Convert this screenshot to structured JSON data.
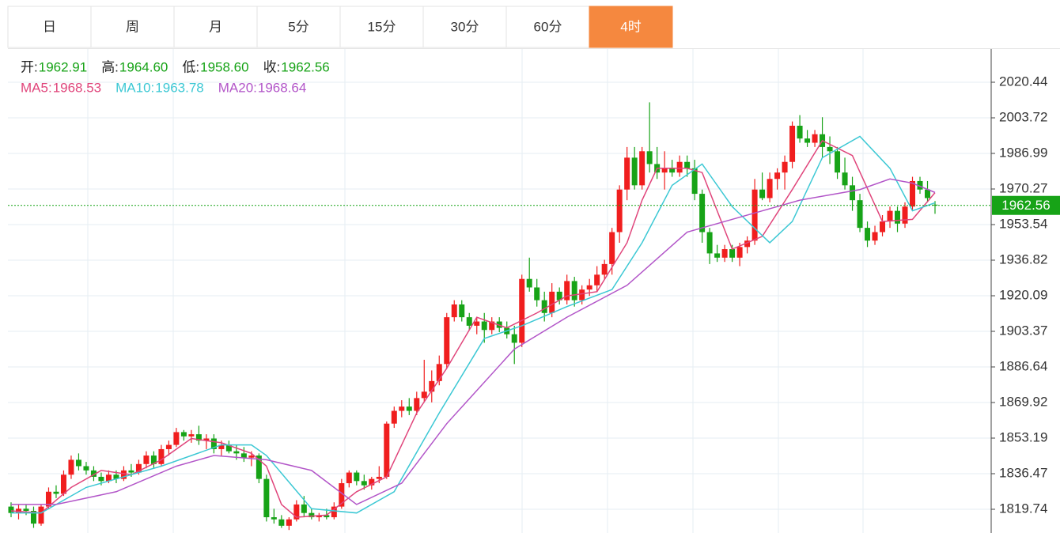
{
  "tabs": {
    "items": [
      "日",
      "周",
      "月",
      "5分",
      "15分",
      "30分",
      "60分",
      "4时"
    ],
    "active": 7
  },
  "chart_data": {
    "type": "candlestick",
    "header": {
      "ohlc": [
        {
          "label": "开:",
          "value": "1962.91"
        },
        {
          "label": "高:",
          "value": "1964.60"
        },
        {
          "label": "低:",
          "value": "1958.60"
        },
        {
          "label": "收:",
          "value": "1962.56"
        }
      ],
      "ma": [
        {
          "label": "MA5:",
          "value": "1968.53"
        },
        {
          "label": "MA10:",
          "value": "1963.78"
        },
        {
          "label": "MA20:",
          "value": "1968.64"
        }
      ]
    },
    "up_color": "#f01e1e",
    "down_color": "#17a317",
    "candles": [
      [
        1821,
        1823,
        1816,
        1818
      ],
      [
        1818,
        1822,
        1815,
        1820
      ],
      [
        1820,
        1822,
        1817,
        1819
      ],
      [
        1819,
        1821,
        1811,
        1813
      ],
      [
        1813,
        1822,
        1812,
        1821
      ],
      [
        1821,
        1830,
        1820,
        1828
      ],
      [
        1828,
        1831,
        1825,
        1827
      ],
      [
        1827,
        1838,
        1826,
        1836
      ],
      [
        1836,
        1845,
        1834,
        1843
      ],
      [
        1843,
        1846,
        1838,
        1840
      ],
      [
        1840,
        1842,
        1836,
        1838
      ],
      [
        1838,
        1840,
        1833,
        1835
      ],
      [
        1835,
        1837,
        1831,
        1833
      ],
      [
        1833,
        1838,
        1832,
        1836
      ],
      [
        1836,
        1838,
        1832,
        1834
      ],
      [
        1834,
        1840,
        1833,
        1838
      ],
      [
        1838,
        1841,
        1835,
        1837
      ],
      [
        1837,
        1843,
        1836,
        1841
      ],
      [
        1841,
        1847,
        1839,
        1845
      ],
      [
        1845,
        1847,
        1839,
        1841
      ],
      [
        1841,
        1850,
        1840,
        1848
      ],
      [
        1848,
        1852,
        1845,
        1850
      ],
      [
        1850,
        1858,
        1849,
        1856
      ],
      [
        1856,
        1857,
        1852,
        1854
      ],
      [
        1854,
        1857,
        1851,
        1855
      ],
      [
        1855,
        1859,
        1850,
        1852
      ],
      [
        1852,
        1855,
        1848,
        1853
      ],
      [
        1853,
        1855,
        1846,
        1848
      ],
      [
        1848,
        1852,
        1845,
        1850
      ],
      [
        1850,
        1852,
        1846,
        1847
      ],
      [
        1847,
        1850,
        1843,
        1846
      ],
      [
        1846,
        1849,
        1842,
        1844
      ],
      [
        1844,
        1847,
        1840,
        1845
      ],
      [
        1845,
        1846,
        1832,
        1834
      ],
      [
        1834,
        1836,
        1814,
        1816
      ],
      [
        1816,
        1820,
        1813,
        1815
      ],
      [
        1815,
        1817,
        1811,
        1812
      ],
      [
        1812,
        1816,
        1810,
        1815
      ],
      [
        1815,
        1824,
        1814,
        1822
      ],
      [
        1822,
        1826,
        1816,
        1818
      ],
      [
        1818,
        1820,
        1815,
        1816
      ],
      [
        1816,
        1818,
        1814,
        1817
      ],
      [
        1817,
        1820,
        1815,
        1816
      ],
      [
        1816,
        1823,
        1815,
        1821
      ],
      [
        1821,
        1834,
        1820,
        1832
      ],
      [
        1832,
        1838,
        1830,
        1837
      ],
      [
        1837,
        1838,
        1831,
        1833
      ],
      [
        1833,
        1836,
        1829,
        1831
      ],
      [
        1831,
        1835,
        1829,
        1834
      ],
      [
        1834,
        1840,
        1832,
        1835
      ],
      [
        1835,
        1861,
        1834,
        1860
      ],
      [
        1860,
        1868,
        1858,
        1866
      ],
      [
        1866,
        1871,
        1863,
        1868
      ],
      [
        1868,
        1872,
        1864,
        1866
      ],
      [
        1866,
        1875,
        1864,
        1872
      ],
      [
        1872,
        1890,
        1870,
        1875
      ],
      [
        1875,
        1885,
        1870,
        1880
      ],
      [
        1880,
        1892,
        1878,
        1888
      ],
      [
        1888,
        1912,
        1886,
        1910
      ],
      [
        1910,
        1918,
        1908,
        1916
      ],
      [
        1916,
        1918,
        1908,
        1910
      ],
      [
        1910,
        1912,
        1904,
        1906
      ],
      [
        1906,
        1910,
        1902,
        1908
      ],
      [
        1908,
        1912,
        1898,
        1904
      ],
      [
        1904,
        1910,
        1902,
        1908
      ],
      [
        1908,
        1910,
        1903,
        1905
      ],
      [
        1905,
        1908,
        1900,
        1902
      ],
      [
        1902,
        1906,
        1888,
        1898
      ],
      [
        1898,
        1930,
        1896,
        1928
      ],
      [
        1928,
        1938,
        1922,
        1924
      ],
      [
        1924,
        1928,
        1915,
        1918
      ],
      [
        1918,
        1922,
        1908,
        1912
      ],
      [
        1912,
        1926,
        1910,
        1922
      ],
      [
        1922,
        1924,
        1916,
        1918
      ],
      [
        1918,
        1930,
        1916,
        1927
      ],
      [
        1927,
        1929,
        1915,
        1918
      ],
      [
        1918,
        1925,
        1916,
        1923
      ],
      [
        1923,
        1928,
        1920,
        1925
      ],
      [
        1925,
        1934,
        1922,
        1930
      ],
      [
        1930,
        1937,
        1928,
        1935
      ],
      [
        1935,
        1952,
        1930,
        1950
      ],
      [
        1950,
        1972,
        1945,
        1970
      ],
      [
        1970,
        1990,
        1965,
        1985
      ],
      [
        1985,
        1990,
        1970,
        1972
      ],
      [
        1972,
        1990,
        1970,
        1988
      ],
      [
        1988,
        2011,
        1978,
        1982
      ],
      [
        1982,
        1990,
        1975,
        1978
      ],
      [
        1978,
        1988,
        1970,
        1980
      ],
      [
        1980,
        1984,
        1976,
        1978
      ],
      [
        1978,
        1986,
        1976,
        1983
      ],
      [
        1983,
        1986,
        1976,
        1980
      ],
      [
        1980,
        1984,
        1965,
        1968
      ],
      [
        1968,
        1970,
        1945,
        1950
      ],
      [
        1950,
        1952,
        1935,
        1940
      ],
      [
        1940,
        1944,
        1936,
        1938
      ],
      [
        1938,
        1944,
        1936,
        1942
      ],
      [
        1942,
        1944,
        1936,
        1938
      ],
      [
        1938,
        1945,
        1934,
        1943
      ],
      [
        1943,
        1948,
        1940,
        1946
      ],
      [
        1946,
        1975,
        1944,
        1970
      ],
      [
        1970,
        1978,
        1965,
        1966
      ],
      [
        1966,
        1978,
        1964,
        1975
      ],
      [
        1975,
        1980,
        1970,
        1978
      ],
      [
        1978,
        1986,
        1970,
        1983
      ],
      [
        1983,
        2002,
        1980,
        2000
      ],
      [
        2000,
        2005,
        1992,
        1994
      ],
      [
        1994,
        1998,
        1990,
        1992
      ],
      [
        1992,
        1998,
        1990,
        1996
      ],
      [
        1996,
        2004,
        1985,
        1990
      ],
      [
        1990,
        1995,
        1982,
        1988
      ],
      [
        1988,
        1990,
        1975,
        1978
      ],
      [
        1978,
        1985,
        1970,
        1972
      ],
      [
        1972,
        1976,
        1960,
        1965
      ],
      [
        1965,
        1968,
        1950,
        1952
      ],
      [
        1952,
        1955,
        1943,
        1946
      ],
      [
        1946,
        1953,
        1944,
        1950
      ],
      [
        1950,
        1958,
        1948,
        1955
      ],
      [
        1955,
        1962,
        1952,
        1960
      ],
      [
        1960,
        1962,
        1950,
        1954
      ],
      [
        1954,
        1964,
        1952,
        1962
      ],
      [
        1962,
        1976,
        1960,
        1974
      ],
      [
        1974,
        1976,
        1968,
        1970
      ],
      [
        1970,
        1974,
        1964,
        1966
      ],
      [
        1962.91,
        1964.6,
        1958.6,
        1962.56
      ]
    ],
    "series": [
      {
        "name": "MA5",
        "color": "#e0457b",
        "x": [
          0,
          4,
          8,
          12,
          16,
          20,
          24,
          28,
          32,
          34,
          36,
          38,
          42,
          46,
          50,
          54,
          58,
          62,
          66,
          70,
          74,
          78,
          82,
          84,
          86,
          90,
          92,
          94,
          96,
          100,
          104,
          108,
          112,
          116,
          120,
          123
        ],
        "values": [
          1819,
          1818,
          1830,
          1838,
          1836,
          1843,
          1853,
          1851,
          1846,
          1840,
          1822,
          1816,
          1817,
          1828,
          1835,
          1865,
          1886,
          1910,
          1905,
          1912,
          1920,
          1922,
          1945,
          1965,
          1980,
          1980,
          1978,
          1960,
          1942,
          1948,
          1970,
          1993,
          1986,
          1955,
          1956,
          1968.53
        ]
      },
      {
        "name": "MA10",
        "color": "#3cc8d4",
        "x": [
          0,
          4,
          10,
          20,
          28,
          32,
          34,
          40,
          46,
          51,
          57,
          63,
          68,
          74,
          80,
          84,
          88,
          92,
          96,
          101,
          104,
          108,
          113,
          117,
          120,
          123
        ],
        "values": [
          1818,
          1818,
          1830,
          1840,
          1850,
          1850,
          1845,
          1820,
          1818,
          1828,
          1865,
          1900,
          1906,
          1915,
          1923,
          1945,
          1972,
          1982,
          1962,
          1945,
          1955,
          1985,
          1995,
          1980,
          1960,
          1963.78
        ]
      },
      {
        "name": "MA20",
        "color": "#b255c8",
        "x": [
          0,
          6,
          14,
          22,
          27,
          34,
          40,
          46,
          52,
          58,
          67,
          74,
          82,
          90,
          97,
          105,
          113,
          117,
          120,
          123
        ],
        "values": [
          1822,
          1822,
          1828,
          1840,
          1845,
          1843,
          1838,
          1822,
          1832,
          1860,
          1895,
          1910,
          1925,
          1950,
          1957,
          1965,
          1970,
          1975,
          1973,
          1968.64
        ]
      }
    ],
    "ylim": [
      1808.59,
      2036.05
    ],
    "yticks": [
      1819.74,
      1836.47,
      1853.19,
      1869.92,
      1886.64,
      1903.37,
      1920.09,
      1936.82,
      1953.54,
      1970.27,
      1986.99,
      2003.72,
      2020.44
    ],
    "last_price": {
      "value": 1962.56,
      "label": "1962.56",
      "color": "#17a317"
    },
    "grid": true
  }
}
